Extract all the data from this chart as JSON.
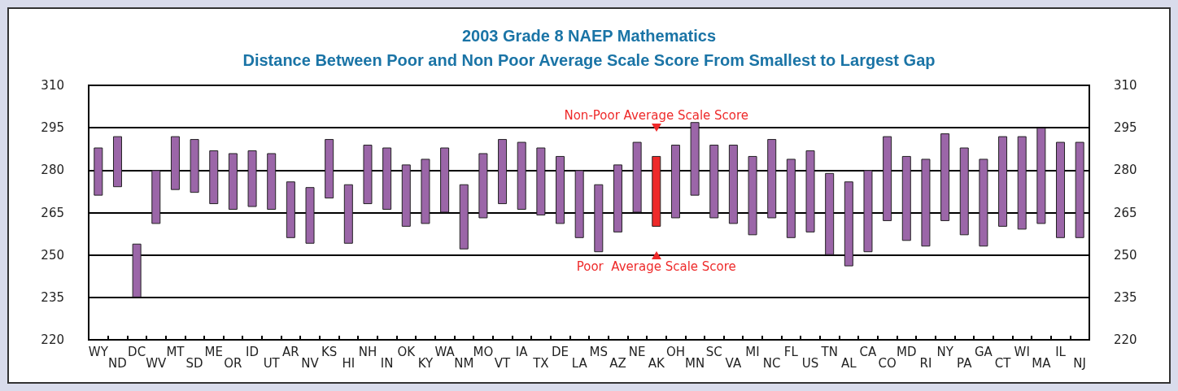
{
  "chart_data": {
    "type": "bar",
    "title": "2003 Grade 8 NAEP Mathematics",
    "subtitle": "Distance Between Poor and Non Poor Average Scale Score From Smallest to Largest Gap",
    "categories": [
      "WY",
      "ND",
      "DC",
      "WV",
      "MT",
      "SD",
      "ME",
      "OR",
      "ID",
      "UT",
      "AR",
      "NV",
      "KS",
      "HI",
      "NH",
      "IN",
      "OK",
      "KY",
      "WA",
      "NM",
      "MO",
      "VT",
      "IA",
      "TX",
      "DE",
      "LA",
      "MS",
      "AZ",
      "NE",
      "AK",
      "OH",
      "MN",
      "SC",
      "VA",
      "MI",
      "NC",
      "FL",
      "US",
      "TN",
      "AL",
      "CA",
      "CO",
      "MD",
      "RI",
      "NY",
      "PA",
      "GA",
      "CT",
      "WI",
      "MA",
      "IL",
      "NJ"
    ],
    "base": [
      271,
      274,
      235,
      261,
      273,
      272,
      268,
      266,
      267,
      266,
      256,
      254,
      270,
      254,
      268,
      266,
      260,
      261,
      265,
      252,
      263,
      268,
      266,
      264,
      261,
      256,
      251,
      258,
      265,
      260,
      263,
      271,
      263,
      261,
      257,
      263,
      256,
      258,
      250,
      246,
      251,
      262,
      255,
      253,
      262,
      257,
      253,
      260,
      259,
      261,
      256,
      256
    ],
    "values": [
      17,
      18,
      19,
      19,
      19,
      19,
      19,
      20,
      20,
      20,
      20,
      20,
      21,
      21,
      21,
      22,
      22,
      23,
      23,
      23,
      23,
      23,
      24,
      24,
      24,
      24,
      24,
      24,
      25,
      25,
      26,
      26,
      26,
      28,
      28,
      28,
      28,
      29,
      29,
      30,
      29,
      30,
      30,
      31,
      31,
      31,
      31,
      32,
      33,
      34,
      34,
      34
    ],
    "colors": [
      "#9b66a8",
      "#9b66a8",
      "#9b66a8",
      "#9b66a8",
      "#9b66a8",
      "#9b66a8",
      "#9b66a8",
      "#9b66a8",
      "#9b66a8",
      "#9b66a8",
      "#9b66a8",
      "#9b66a8",
      "#9b66a8",
      "#9b66a8",
      "#9b66a8",
      "#9b66a8",
      "#9b66a8",
      "#9b66a8",
      "#9b66a8",
      "#9b66a8",
      "#9b66a8",
      "#9b66a8",
      "#9b66a8",
      "#9b66a8",
      "#9b66a8",
      "#9b66a8",
      "#9b66a8",
      "#9b66a8",
      "#9b66a8",
      "#ee2a2a",
      "#9b66a8",
      "#9b66a8",
      "#9b66a8",
      "#9b66a8",
      "#9b66a8",
      "#9b66a8",
      "#9b66a8",
      "#9b66a8",
      "#9b66a8",
      "#9b66a8",
      "#9b66a8",
      "#9b66a8",
      "#9b66a8",
      "#9b66a8",
      "#9b66a8",
      "#9b66a8",
      "#9b66a8",
      "#9b66a8",
      "#9b66a8",
      "#9b66a8",
      "#9b66a8",
      "#9b66a8"
    ],
    "ylim": [
      220,
      310
    ],
    "yticks": [
      220,
      235,
      250,
      265,
      280,
      295,
      310
    ],
    "y2lim": [
      220,
      310
    ],
    "y2ticks": [
      220,
      235,
      250,
      265,
      280,
      295,
      310
    ],
    "grid": "y",
    "annotations": [
      {
        "text": "Non-Poor Average Scale Score",
        "x": "AK",
        "y": 285
      },
      {
        "text": "Poor  Average Scale Score",
        "x": "AK",
        "y": 260
      }
    ]
  }
}
